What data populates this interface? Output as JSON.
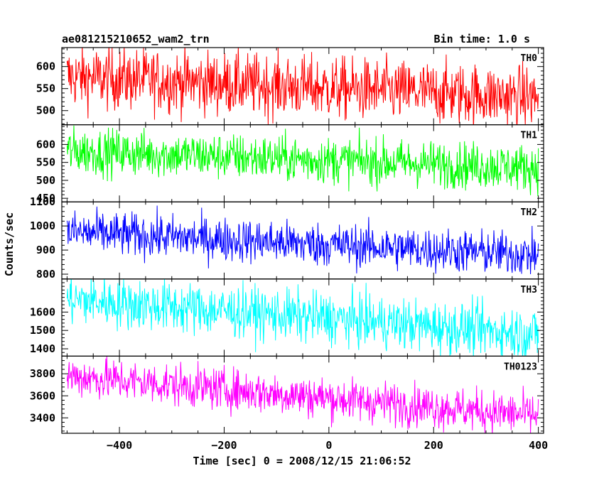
{
  "header": {
    "title": "ae081215210652_wam2_trn",
    "bin_time": "Bin time: 1.0 s"
  },
  "chart_data": {
    "type": "line",
    "xlabel": "Time [sec] 0 = 2008/12/15 21:06:52",
    "ylabel": "Counts/sec",
    "xlim": [
      -510,
      410
    ],
    "x_ticks": [
      -400,
      -200,
      0,
      200,
      400
    ],
    "x_tick_labels": [
      "−400",
      "−200",
      "0",
      "200",
      "400"
    ],
    "series": [
      {
        "name": "TH0",
        "color": "#ff0000",
        "ylim": [
          468,
          643
        ],
        "y_ticks": [
          500,
          550,
          600
        ],
        "trend": [
          577,
          530
        ],
        "noise": 35
      },
      {
        "name": "TH1",
        "color": "#00ff00",
        "ylim": [
          440,
          655
        ],
        "y_ticks": [
          450,
          500,
          550,
          600
        ],
        "trend": [
          582,
          535
        ],
        "noise": 32
      },
      {
        "name": "TH2",
        "color": "#0000ff",
        "ylim": [
          780,
          1100
        ],
        "y_ticks": [
          800,
          900,
          1000,
          1100
        ],
        "trend": [
          975,
          880
        ],
        "noise": 45
      },
      {
        "name": "TH3",
        "color": "#00ffff",
        "ylim": [
          1360,
          1780
        ],
        "y_ticks": [
          1400,
          1500,
          1600
        ],
        "trend": [
          1670,
          1480
        ],
        "noise": 70
      },
      {
        "name": "TH0123",
        "color": "#ff00ff",
        "ylim": [
          3260,
          3960
        ],
        "y_ticks": [
          3400,
          3600,
          3800
        ],
        "trend": [
          3780,
          3420
        ],
        "noise": 95
      }
    ]
  }
}
